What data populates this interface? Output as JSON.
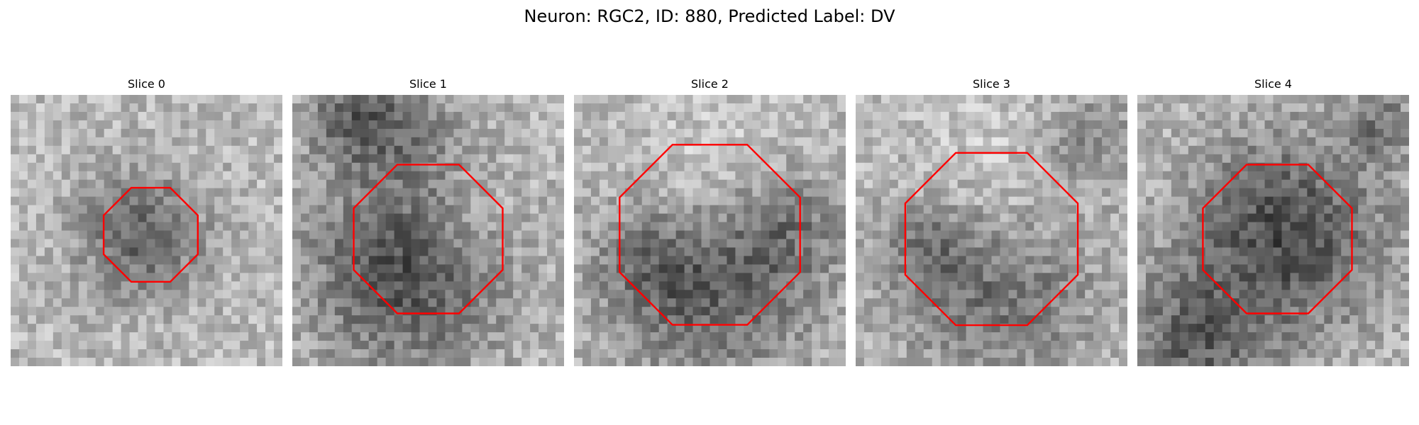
{
  "title": "Neuron: RGC2, ID: 880, Predicted Label: DV",
  "panels": [
    {
      "label": "Slice 0",
      "cell_shade": "dark",
      "outline_color": "#ff0000"
    },
    {
      "label": "Slice 1",
      "cell_shade": "dark",
      "outline_color": "#ff0000"
    },
    {
      "label": "Slice 2",
      "cell_shade": "mixed",
      "outline_color": "#ff0000"
    },
    {
      "label": "Slice 3",
      "cell_shade": "mixed",
      "outline_color": "#ff0000"
    },
    {
      "label": "Slice 4",
      "cell_shade": "dark",
      "outline_color": "#ff0000"
    }
  ],
  "colormap": "grayscale"
}
